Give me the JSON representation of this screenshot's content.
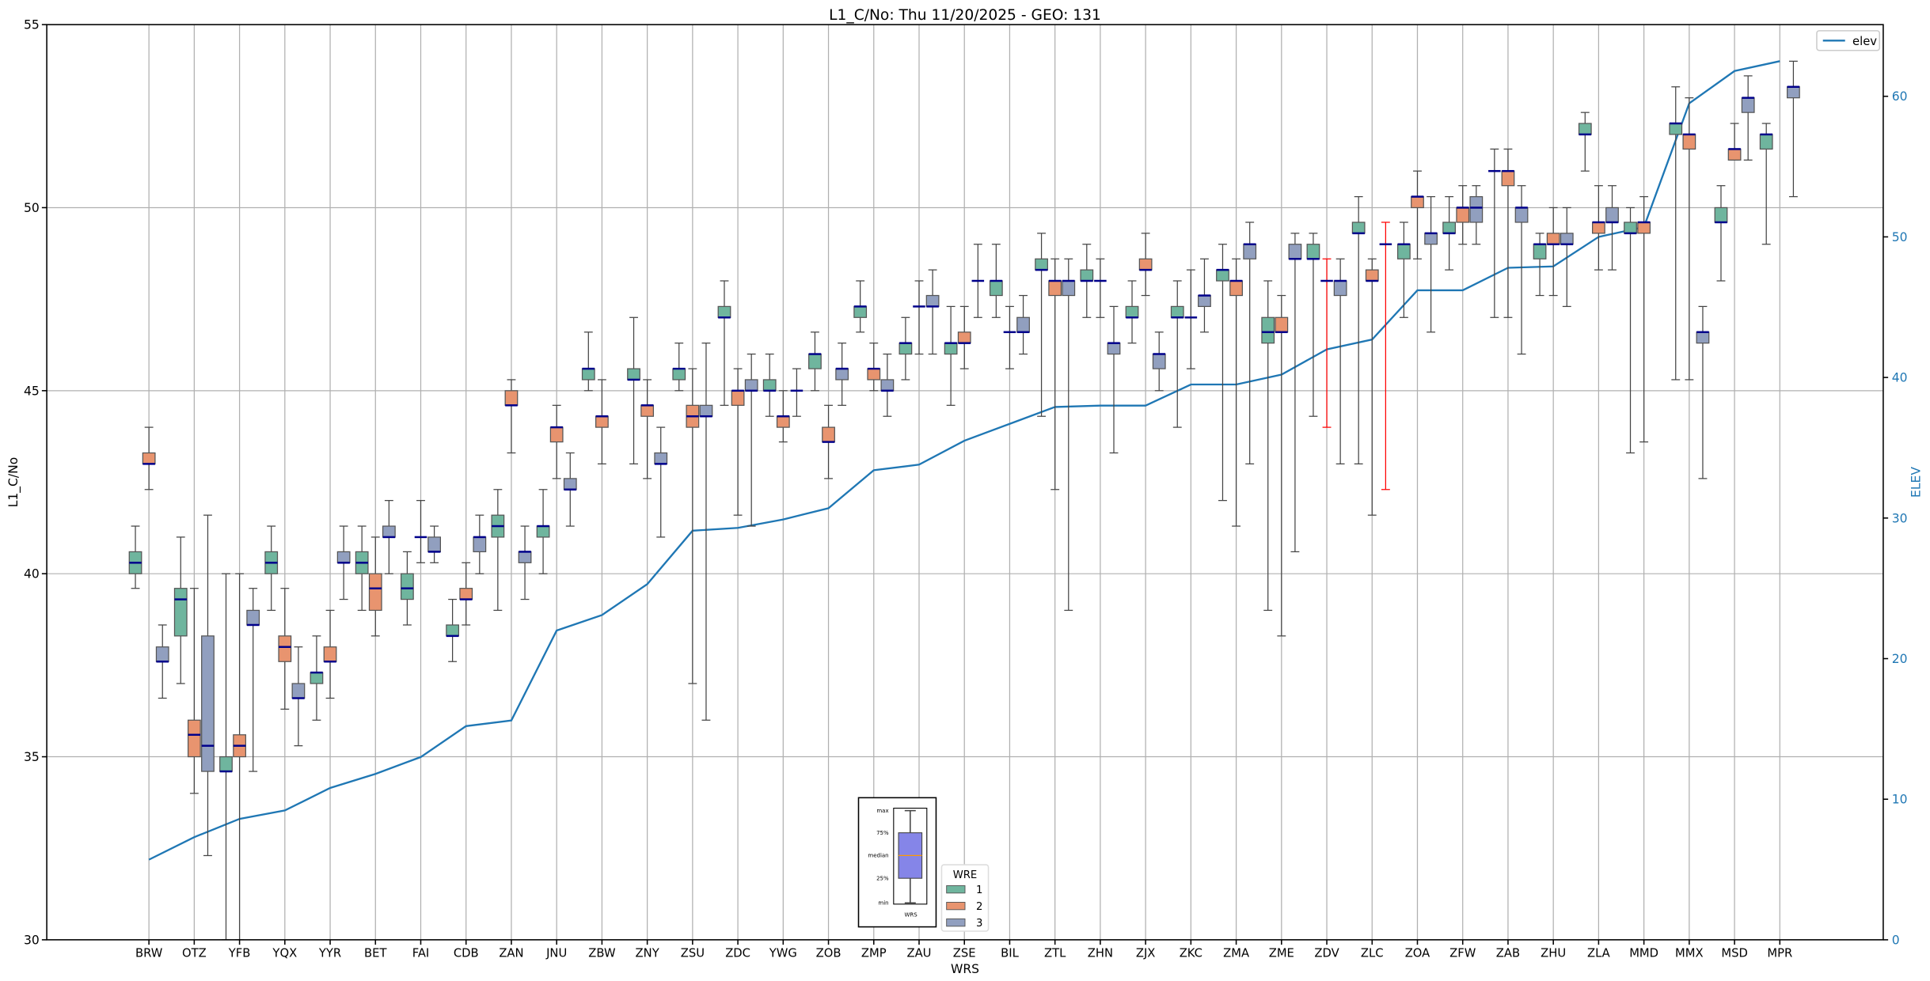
{
  "chart_data": {
    "type": "box",
    "title": "L1_C/No: Thu 11/20/2025 - GEO: 131",
    "xlabel": "WRS",
    "ylabel": "L1_C/No",
    "y2label": "ELEV",
    "ylim": [
      30,
      55
    ],
    "y2lim": [
      0,
      65.1
    ],
    "yticks": [
      30,
      35,
      40,
      45,
      50,
      55
    ],
    "y2ticks": [
      0,
      10,
      20,
      30,
      40,
      50,
      60
    ],
    "grid": true,
    "box_order": [
      "min",
      "q1",
      "median",
      "q3",
      "max"
    ],
    "wre_legend": {
      "title": "WRE",
      "entries": [
        {
          "label": "1",
          "color": "#6fb59e"
        },
        {
          "label": "2",
          "color": "#e8946f"
        },
        {
          "label": "3",
          "color": "#919fbf"
        }
      ],
      "placement": "bottom-center"
    },
    "key_inset": {
      "labels": [
        "max",
        "75%",
        "median",
        "25%",
        "min"
      ],
      "xlabel": "WRS",
      "color": "#8585e8",
      "median_color": "#ff9900"
    },
    "elev_legend": {
      "label": "elev",
      "color": "#1f77b4",
      "placement": "top-right"
    },
    "median_color": "#00008b",
    "alert_whisker_color": "#ff0000",
    "stations": [
      {
        "name": "BRW",
        "elev": 5.7,
        "boxes": [
          [
            39.6,
            40.0,
            40.3,
            40.6,
            41.3
          ],
          [
            42.3,
            43.0,
            43.0,
            43.3,
            44.0
          ],
          [
            36.6,
            37.6,
            37.6,
            38.0,
            38.6
          ]
        ]
      },
      {
        "name": "OTZ",
        "elev": 7.3,
        "boxes": [
          [
            37.0,
            38.3,
            39.3,
            39.6,
            41.0
          ],
          [
            34.0,
            35.0,
            35.6,
            36.0,
            39.6
          ],
          [
            32.3,
            34.6,
            35.3,
            38.3,
            41.6
          ]
        ]
      },
      {
        "name": "YFB",
        "elev": 8.6,
        "boxes": [
          [
            30.0,
            34.6,
            34.6,
            35.0,
            40.0
          ],
          [
            30.0,
            35.0,
            35.3,
            35.6,
            40.0
          ],
          [
            34.6,
            38.6,
            38.6,
            39.0,
            39.6
          ]
        ]
      },
      {
        "name": "YQX",
        "elev": 9.2,
        "boxes": [
          [
            39.0,
            40.0,
            40.3,
            40.6,
            41.3
          ],
          [
            36.3,
            37.6,
            38.0,
            38.3,
            39.6
          ],
          [
            35.3,
            36.6,
            36.6,
            37.0,
            38.0
          ]
        ]
      },
      {
        "name": "YYR",
        "elev": 10.8,
        "boxes": [
          [
            36.0,
            37.0,
            37.3,
            37.3,
            38.3
          ],
          [
            36.6,
            37.6,
            37.6,
            38.0,
            39.0
          ],
          [
            39.3,
            40.3,
            40.3,
            40.6,
            41.3
          ]
        ]
      },
      {
        "name": "BET",
        "elev": 11.8,
        "boxes": [
          [
            39.0,
            40.0,
            40.3,
            40.6,
            41.3
          ],
          [
            38.3,
            39.0,
            39.6,
            40.0,
            41.0
          ],
          [
            40.0,
            41.0,
            41.0,
            41.3,
            42.0
          ]
        ]
      },
      {
        "name": "FAI",
        "elev": 13.0,
        "boxes": [
          [
            38.6,
            39.3,
            39.6,
            40.0,
            40.6
          ],
          [
            40.3,
            41.0,
            41.0,
            41.0,
            42.0
          ],
          [
            40.3,
            40.6,
            40.6,
            41.0,
            41.3
          ]
        ]
      },
      {
        "name": "CDB",
        "elev": 15.2,
        "boxes": [
          [
            37.6,
            38.3,
            38.3,
            38.6,
            39.3
          ],
          [
            38.6,
            39.3,
            39.3,
            39.6,
            40.3
          ],
          [
            40.0,
            40.6,
            41.0,
            41.0,
            41.6
          ]
        ]
      },
      {
        "name": "ZAN",
        "elev": 15.6,
        "boxes": [
          [
            39.0,
            41.0,
            41.3,
            41.6,
            42.3
          ],
          [
            43.3,
            44.6,
            44.6,
            45.0,
            45.3
          ],
          [
            39.3,
            40.3,
            40.6,
            40.6,
            41.3
          ]
        ]
      },
      {
        "name": "JNU",
        "elev": 22.0,
        "boxes": [
          [
            40.0,
            41.0,
            41.3,
            41.3,
            42.3
          ],
          [
            42.6,
            43.6,
            44.0,
            44.0,
            44.6
          ],
          [
            41.3,
            42.3,
            42.3,
            42.6,
            43.3
          ]
        ]
      },
      {
        "name": "ZBW",
        "elev": 23.1,
        "boxes": [
          [
            45.0,
            45.3,
            45.6,
            45.6,
            46.6
          ],
          [
            43.0,
            44.0,
            44.3,
            44.3,
            45.3
          ],
          null
        ]
      },
      {
        "name": "ZNY",
        "elev": 25.3,
        "boxes": [
          [
            43.0,
            45.3,
            45.3,
            45.6,
            47.0
          ],
          [
            42.6,
            44.3,
            44.6,
            44.6,
            45.3
          ],
          [
            41.0,
            43.0,
            43.0,
            43.3,
            44.0
          ]
        ]
      },
      {
        "name": "ZSU",
        "elev": 29.1,
        "boxes": [
          [
            45.0,
            45.3,
            45.6,
            45.6,
            46.3
          ],
          [
            37.0,
            44.0,
            44.3,
            44.6,
            45.6
          ],
          [
            36.0,
            44.3,
            44.3,
            44.6,
            46.3
          ]
        ]
      },
      {
        "name": "ZDC",
        "elev": 29.3,
        "boxes": [
          [
            44.6,
            47.0,
            47.0,
            47.3,
            48.0
          ],
          [
            41.6,
            44.6,
            45.0,
            45.0,
            45.6
          ],
          [
            41.3,
            45.0,
            45.0,
            45.3,
            46.0
          ]
        ]
      },
      {
        "name": "YWG",
        "elev": 29.9,
        "boxes": [
          [
            44.3,
            45.0,
            45.0,
            45.3,
            46.0
          ],
          [
            43.6,
            44.0,
            44.3,
            44.3,
            45.0
          ],
          [
            44.3,
            45.0,
            45.0,
            45.0,
            45.6
          ]
        ]
      },
      {
        "name": "ZOB",
        "elev": 30.7,
        "boxes": [
          [
            45.0,
            45.6,
            46.0,
            46.0,
            46.6
          ],
          [
            42.6,
            43.6,
            43.6,
            44.0,
            44.6
          ],
          [
            44.6,
            45.3,
            45.6,
            45.6,
            46.3
          ]
        ]
      },
      {
        "name": "ZMP",
        "elev": 33.4,
        "boxes": [
          [
            46.6,
            47.0,
            47.3,
            47.3,
            48.0
          ],
          [
            45.0,
            45.3,
            45.6,
            45.6,
            46.3
          ],
          [
            44.3,
            45.0,
            45.0,
            45.3,
            46.0
          ]
        ]
      },
      {
        "name": "ZAU",
        "elev": 33.8,
        "boxes": [
          [
            45.3,
            46.0,
            46.3,
            46.3,
            47.0
          ],
          [
            46.0,
            47.3,
            47.3,
            47.3,
            48.0
          ],
          [
            46.0,
            47.3,
            47.3,
            47.6,
            48.3
          ]
        ]
      },
      {
        "name": "ZSE",
        "elev": 35.5,
        "boxes": [
          [
            44.6,
            46.0,
            46.3,
            46.3,
            47.3
          ],
          [
            45.6,
            46.3,
            46.3,
            46.6,
            47.3
          ],
          [
            47.0,
            48.0,
            48.0,
            48.0,
            49.0
          ]
        ]
      },
      {
        "name": "BIL",
        "elev": 36.7,
        "boxes": [
          [
            47.0,
            47.6,
            48.0,
            48.0,
            49.0
          ],
          [
            45.6,
            46.6,
            46.6,
            46.6,
            47.3
          ],
          [
            46.0,
            46.6,
            46.6,
            47.0,
            47.6
          ]
        ]
      },
      {
        "name": "ZTL",
        "elev": 37.9,
        "boxes": [
          [
            44.3,
            48.3,
            48.3,
            48.6,
            49.3
          ],
          [
            42.3,
            47.6,
            48.0,
            48.0,
            48.6
          ],
          [
            39.0,
            47.6,
            48.0,
            48.0,
            48.6
          ]
        ]
      },
      {
        "name": "ZHN",
        "elev": 38.0,
        "boxes": [
          [
            47.0,
            48.0,
            48.0,
            48.3,
            49.0
          ],
          [
            47.0,
            48.0,
            48.0,
            48.0,
            48.6
          ],
          [
            43.3,
            46.0,
            46.3,
            46.3,
            47.3
          ]
        ]
      },
      {
        "name": "ZJX",
        "elev": 38.0,
        "boxes": [
          [
            46.3,
            47.0,
            47.0,
            47.3,
            48.0
          ],
          [
            47.6,
            48.3,
            48.3,
            48.6,
            49.3
          ],
          [
            45.0,
            45.6,
            46.0,
            46.0,
            46.6
          ]
        ]
      },
      {
        "name": "ZKC",
        "elev": 39.5,
        "boxes": [
          [
            44.0,
            47.0,
            47.0,
            47.3,
            48.0
          ],
          [
            45.6,
            47.0,
            47.0,
            47.0,
            48.3
          ],
          [
            46.6,
            47.3,
            47.6,
            47.6,
            48.6
          ]
        ]
      },
      {
        "name": "ZMA",
        "elev": 39.5,
        "boxes": [
          [
            42.0,
            48.0,
            48.3,
            48.3,
            49.0
          ],
          [
            41.3,
            47.6,
            48.0,
            48.0,
            48.6
          ],
          [
            43.0,
            48.6,
            49.0,
            49.0,
            49.6
          ]
        ]
      },
      {
        "name": "ZME",
        "elev": 40.2,
        "boxes": [
          [
            39.0,
            46.3,
            46.6,
            47.0,
            48.0
          ],
          [
            38.3,
            46.6,
            46.6,
            47.0,
            47.6
          ],
          [
            40.6,
            48.6,
            48.6,
            49.0,
            49.3
          ]
        ]
      },
      {
        "name": "ZDV",
        "elev": 42.0,
        "boxes": [
          [
            44.3,
            48.6,
            48.6,
            49.0,
            49.3
          ],
          [
            44.0,
            48.0,
            48.0,
            48.0,
            48.6
          ],
          [
            43.0,
            47.6,
            48.0,
            48.0,
            48.6
          ]
        ],
        "alert": [
          false,
          true,
          false
        ]
      },
      {
        "name": "ZLC",
        "elev": 42.7,
        "boxes": [
          [
            43.0,
            49.3,
            49.3,
            49.6,
            50.3
          ],
          [
            41.6,
            48.0,
            48.0,
            48.3,
            48.6
          ],
          [
            42.3,
            49.0,
            49.0,
            49.0,
            49.6
          ]
        ],
        "alert": [
          false,
          false,
          true
        ]
      },
      {
        "name": "ZOA",
        "elev": 46.2,
        "boxes": [
          [
            47.0,
            48.6,
            49.0,
            49.0,
            49.6
          ],
          [
            48.6,
            50.0,
            50.3,
            50.3,
            51.0
          ],
          [
            46.6,
            49.0,
            49.3,
            49.3,
            50.3
          ]
        ]
      },
      {
        "name": "ZFW",
        "elev": 46.2,
        "boxes": [
          [
            48.3,
            49.3,
            49.3,
            49.6,
            50.3
          ],
          [
            49.0,
            49.6,
            50.0,
            50.0,
            50.6
          ],
          [
            49.0,
            49.6,
            50.0,
            50.3,
            50.6
          ]
        ]
      },
      {
        "name": "ZAB",
        "elev": 47.8,
        "boxes": [
          [
            47.0,
            51.0,
            51.0,
            51.0,
            51.6
          ],
          [
            47.0,
            50.6,
            51.0,
            51.0,
            51.6
          ],
          [
            46.0,
            49.6,
            50.0,
            50.0,
            50.6
          ]
        ]
      },
      {
        "name": "ZHU",
        "elev": 47.9,
        "boxes": [
          [
            47.6,
            48.6,
            49.0,
            49.0,
            49.3
          ],
          [
            47.6,
            49.0,
            49.0,
            49.3,
            50.0
          ],
          [
            47.3,
            49.0,
            49.0,
            49.3,
            50.0
          ]
        ]
      },
      {
        "name": "ZLA",
        "elev": 50.0,
        "boxes": [
          [
            51.0,
            52.0,
            52.0,
            52.3,
            52.6
          ],
          [
            48.3,
            49.3,
            49.6,
            49.6,
            50.6
          ],
          [
            48.3,
            49.6,
            49.6,
            50.0,
            50.6
          ]
        ]
      },
      {
        "name": "MMD",
        "elev": 50.7,
        "boxes": [
          [
            43.3,
            49.3,
            49.3,
            49.6,
            50.0
          ],
          [
            43.6,
            49.3,
            49.6,
            49.6,
            50.3
          ],
          null
        ]
      },
      {
        "name": "MMX",
        "elev": 59.5,
        "boxes": [
          [
            45.3,
            52.0,
            52.3,
            52.3,
            53.3
          ],
          [
            45.3,
            51.6,
            52.0,
            52.0,
            53.0
          ],
          [
            42.6,
            46.3,
            46.6,
            46.6,
            47.3
          ]
        ]
      },
      {
        "name": "MSD",
        "elev": 61.8,
        "boxes": [
          [
            48.0,
            49.6,
            49.6,
            50.0,
            50.6
          ],
          [
            51.3,
            51.3,
            51.6,
            51.6,
            52.3
          ],
          [
            51.3,
            52.6,
            53.0,
            53.0,
            53.6
          ]
        ]
      },
      {
        "name": "MPR",
        "elev": 62.5,
        "boxes": [
          [
            49.0,
            51.6,
            52.0,
            52.0,
            52.3
          ],
          null,
          [
            50.3,
            53.0,
            53.3,
            53.3,
            54.0
          ]
        ]
      }
    ]
  }
}
